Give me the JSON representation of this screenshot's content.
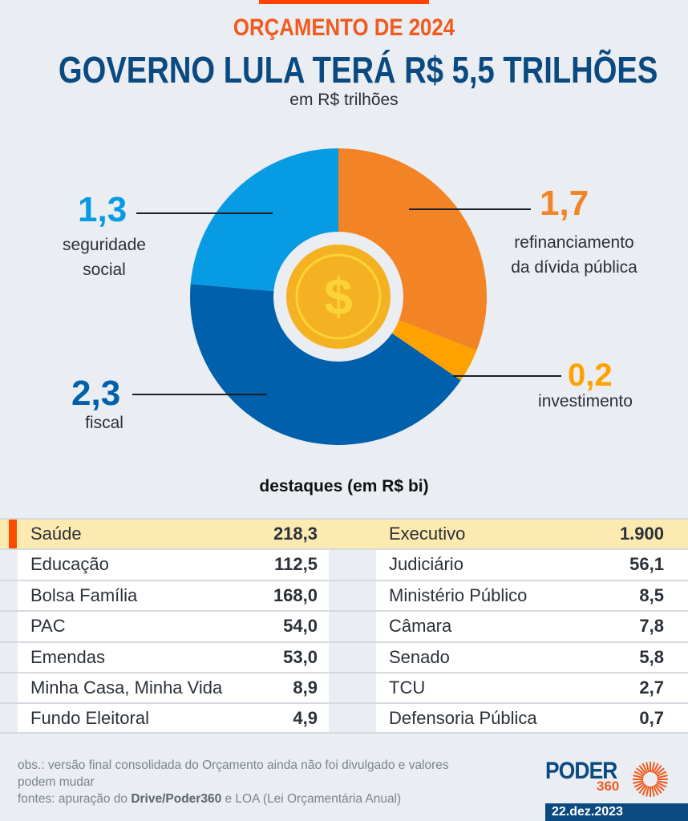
{
  "header": {
    "kicker": "ORÇAMENTO DE 2024",
    "headline": "GOVERNO LULA TERÁ R$ 5,5 TRILHÕES",
    "unit": "em R$ trilhões"
  },
  "colors": {
    "accent": "#ff4200",
    "headline": "#0b4a80",
    "kicker": "#f15a1f",
    "highlight_row": "#fdeab1"
  },
  "chart_data": {
    "type": "pie",
    "title": "GOVERNO LULA TERÁ R$ 5,5 TRILHÕES",
    "subtitle": "em R$ trilhões",
    "total": 5.5,
    "center_icon": "coin-dollar-icon",
    "slices": [
      {
        "label": "refinanciamento da dívida pública",
        "value": 1.7,
        "value_label": "1,7",
        "color": "#f38425"
      },
      {
        "label": "investimento",
        "value": 0.2,
        "value_label": "0,2",
        "color": "#ffa200"
      },
      {
        "label": "fiscal",
        "value": 2.3,
        "value_label": "2,3",
        "color": "#0060ab"
      },
      {
        "label": "seguridade social",
        "value": 1.3,
        "value_label": "1,3",
        "color": "#079be4"
      }
    ]
  },
  "labels": {
    "seguridade": {
      "num": "1,3",
      "text_line1": "seguridade",
      "text_line2": "social"
    },
    "fiscal": {
      "num": "2,3",
      "text_line1": "fiscal"
    },
    "refinanciamento": {
      "num": "1,7",
      "text_line1": "refinanciamento",
      "text_line2": "da dívida pública"
    },
    "investimento": {
      "num": "0,2",
      "text_line1": "investimento"
    }
  },
  "table": {
    "title": "destaques (em R$ bi)",
    "rows": [
      {
        "left_name": "Saúde",
        "left_value": "218,3",
        "right_name": "Executivo",
        "right_value": "1.900",
        "highlight": true
      },
      {
        "left_name": "Educação",
        "left_value": "112,5",
        "right_name": "Judiciário",
        "right_value": "56,1"
      },
      {
        "left_name": "Bolsa Família",
        "left_value": "168,0",
        "right_name": "Ministério Público",
        "right_value": "8,5"
      },
      {
        "left_name": "PAC",
        "left_value": "54,0",
        "right_name": "Câmara",
        "right_value": "7,8"
      },
      {
        "left_name": "Emendas",
        "left_value": "53,0",
        "right_name": "Senado",
        "right_value": "5,8"
      },
      {
        "left_name": "Minha Casa, Minha Vida",
        "left_value": "8,9",
        "right_name": "TCU",
        "right_value": "2,7"
      },
      {
        "left_name": "Fundo Eleitoral",
        "left_value": "4,9",
        "right_name": "Defensoria Pública",
        "right_value": "0,7"
      }
    ]
  },
  "footer": {
    "obs_line1": "obs.: versão final consolidada do Orçamento ainda não foi divulgado e valores",
    "obs_line2": "podem mudar",
    "sources_prefix": "fontes: apuração do ",
    "sources_bold": "Drive/Poder360",
    "sources_suffix": " e LOA (Lei Orçamentária Anual)",
    "logo_word": "PODER",
    "logo_number": "360",
    "date": "22.dez.2023"
  }
}
